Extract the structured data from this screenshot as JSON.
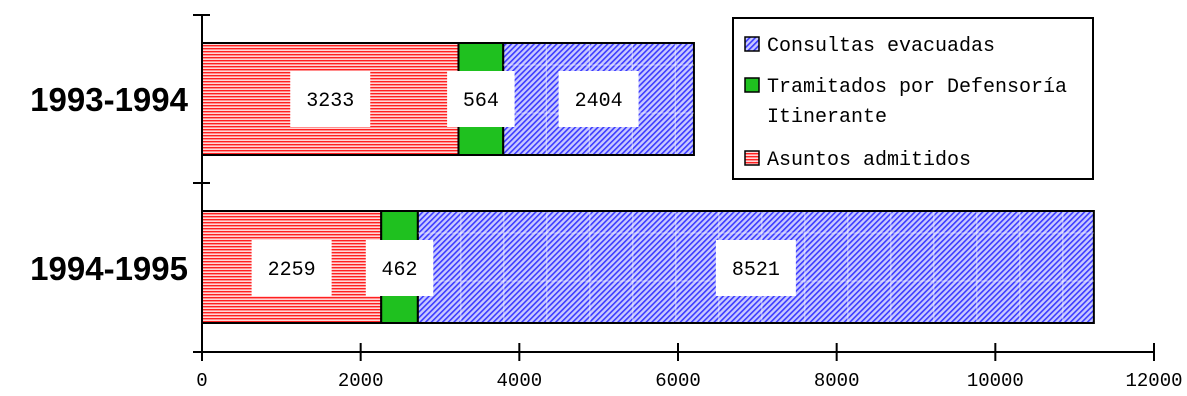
{
  "chart_data": {
    "type": "bar",
    "orientation": "horizontal",
    "stacked": true,
    "categories": [
      "1993-1994",
      "1994-1995"
    ],
    "series": [
      {
        "name": "Asuntos admitidos",
        "values": [
          3233,
          2259
        ],
        "color": "#ff3333",
        "pattern": "horizontal-lines"
      },
      {
        "name": "Tramitados por Defensoría Itinerante",
        "values": [
          564,
          462
        ],
        "color": "#1fc11f",
        "pattern": "solid"
      },
      {
        "name": "Consultas evacuadas",
        "values": [
          2404,
          8521
        ],
        "color": "#6666ff",
        "pattern": "diagonal-lines"
      }
    ],
    "data_labels": [
      [
        "3233",
        "564",
        "2404"
      ],
      [
        "2259",
        "462",
        "8521"
      ]
    ],
    "xlim": [
      0,
      12000
    ],
    "xticks": [
      0,
      2000,
      4000,
      6000,
      8000,
      10000,
      12000
    ],
    "xtick_labels": [
      "0",
      "2000",
      "4000",
      "6000",
      "8000",
      "10000",
      "12000"
    ],
    "legend": {
      "placement": "top-right",
      "items": [
        {
          "lines": [
            "Consultas evacuadas"
          ],
          "series": 2
        },
        {
          "lines": [
            "Tramitados por Defensoría",
            "Itinerante"
          ],
          "series": 1
        },
        {
          "lines": [
            "Asuntos admitidos"
          ],
          "series": 0
        }
      ]
    },
    "grid": false
  }
}
